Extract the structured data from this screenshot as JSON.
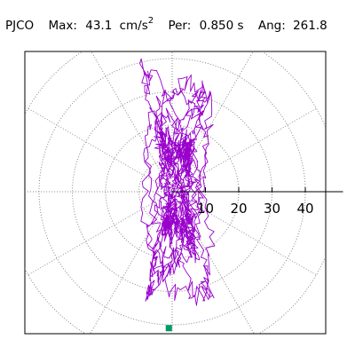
{
  "header": {
    "station": "PJCO",
    "max_label": "Max:",
    "max_value": "43.1",
    "max_unit": "cm/s",
    "max_unit_power": "2",
    "period_label": "Per:",
    "period_value": "0.850 s",
    "angle_label": "Ang:",
    "angle_value": "261.8"
  },
  "chart_data": {
    "type": "scatter",
    "radial_axis": {
      "ticks": [
        10,
        20,
        30,
        40
      ],
      "max": 46,
      "rings": [
        10,
        20,
        30,
        40,
        50
      ]
    },
    "peak_marker": {
      "x": -1,
      "y": -41,
      "color": "#009966"
    },
    "trace_color": "#9900cc",
    "grid": true
  }
}
